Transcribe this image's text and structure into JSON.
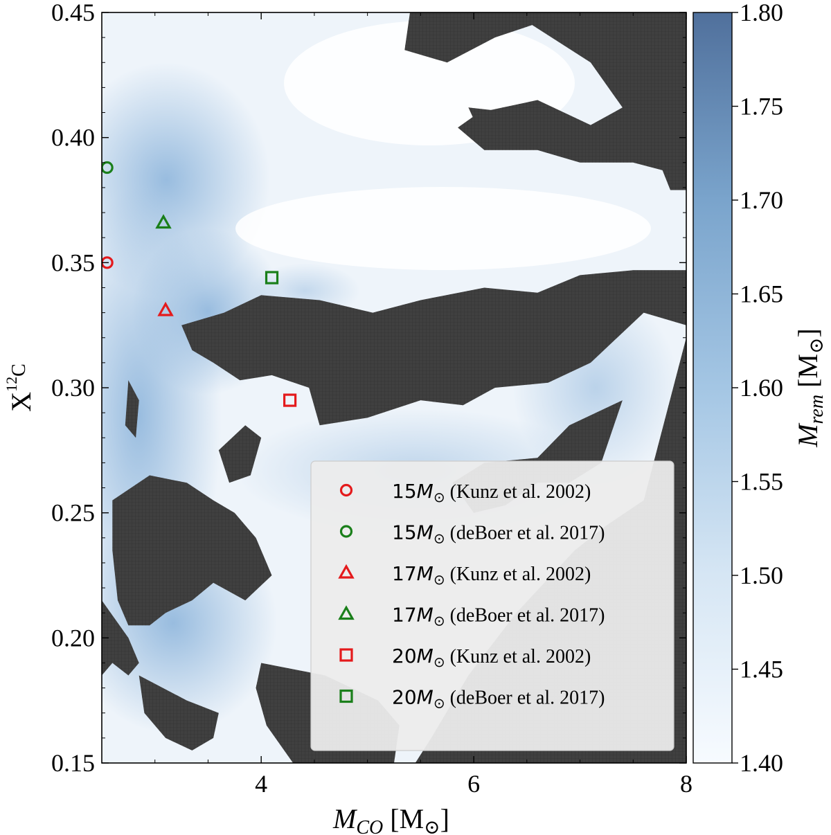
{
  "chart_data": {
    "type": "heatmap",
    "title": "",
    "xlabel": "M_CO [M⊙]",
    "xlabel_parts": {
      "sym": "M",
      "sub": "CO",
      "unit_open": " [M",
      "sun": "⊙",
      "unit_close": "]"
    },
    "ylabel": "X_12C",
    "ylabel_parts": {
      "sym": "X",
      "sup": "12",
      "sub": "C"
    },
    "xlim": [
      2.5,
      8
    ],
    "ylim": [
      0.15,
      0.45
    ],
    "xticks": [
      4,
      6,
      8
    ],
    "xtick_labels": [
      "4",
      "6",
      "8"
    ],
    "yticks": [
      0.15,
      0.2,
      0.25,
      0.3,
      0.35,
      0.4,
      0.45
    ],
    "ytick_labels": [
      "0.15",
      "0.20",
      "0.25",
      "0.30",
      "0.35",
      "0.40",
      "0.45"
    ],
    "colorbar": {
      "label": "M_rem [M⊙]",
      "label_parts": {
        "sym": "M",
        "sub": "rem",
        "unit_open": " [M",
        "sun": "⊙",
        "unit_close": "]"
      },
      "range": [
        1.4,
        1.8
      ],
      "ticks": [
        1.4,
        1.45,
        1.5,
        1.55,
        1.6,
        1.65,
        1.7,
        1.75,
        1.8
      ],
      "tick_labels": [
        "1.40",
        "1.45",
        "1.50",
        "1.55",
        "1.60",
        "1.65",
        "1.70",
        "1.75",
        "1.80"
      ],
      "color_low": "#f7fbff",
      "color_high": "#50709c"
    },
    "no_remnant_color": "#404040",
    "dark_regions": [
      {
        "name": "upper-right-band",
        "points": [
          [
            8,
            0.45
          ],
          [
            5.4,
            0.45
          ],
          [
            5.35,
            0.435
          ],
          [
            5.75,
            0.43
          ],
          [
            6.2,
            0.44
          ],
          [
            6.55,
            0.445
          ],
          [
            7.1,
            0.43
          ],
          [
            7.4,
            0.412
          ],
          [
            7.1,
            0.405
          ],
          [
            6.6,
            0.415
          ],
          [
            6.05,
            0.41
          ],
          [
            5.85,
            0.404
          ],
          [
            6.1,
            0.395
          ],
          [
            6.6,
            0.395
          ],
          [
            7.0,
            0.39
          ],
          [
            7.5,
            0.39
          ],
          [
            7.95,
            0.385
          ],
          [
            8,
            0.385
          ]
        ]
      },
      {
        "name": "upper-left-band",
        "points": [
          [
            5.95,
            0.412
          ],
          [
            6.8,
            0.408
          ],
          [
            6.7,
            0.397
          ],
          [
            6.1,
            0.398
          ]
        ]
      },
      {
        "name": "right-edge-band",
        "points": [
          [
            7.7,
            0.395
          ],
          [
            8,
            0.39
          ],
          [
            8,
            0.379
          ],
          [
            7.85,
            0.379
          ]
        ]
      },
      {
        "name": "middle-band",
        "points": [
          [
            3.25,
            0.325
          ],
          [
            3.65,
            0.33
          ],
          [
            4.0,
            0.337
          ],
          [
            4.55,
            0.335
          ],
          [
            5.05,
            0.33
          ],
          [
            5.5,
            0.335
          ],
          [
            6.1,
            0.34
          ],
          [
            6.6,
            0.338
          ],
          [
            7.0,
            0.345
          ],
          [
            7.5,
            0.347
          ],
          [
            8,
            0.347
          ],
          [
            8,
            0.325
          ],
          [
            7.6,
            0.33
          ],
          [
            7.1,
            0.31
          ],
          [
            6.7,
            0.302
          ],
          [
            6.2,
            0.3
          ],
          [
            5.9,
            0.293
          ],
          [
            5.5,
            0.295
          ],
          [
            5.0,
            0.288
          ],
          [
            4.55,
            0.285
          ],
          [
            4.45,
            0.3
          ],
          [
            4.1,
            0.305
          ],
          [
            3.8,
            0.303
          ],
          [
            3.55,
            0.31
          ],
          [
            3.35,
            0.315
          ]
        ]
      },
      {
        "name": "lower-right-wedge",
        "points": [
          [
            8,
            0.32
          ],
          [
            7.6,
            0.255
          ],
          [
            7.25,
            0.245
          ],
          [
            6.95,
            0.235
          ],
          [
            6.4,
            0.21
          ],
          [
            5.95,
            0.185
          ],
          [
            5.6,
            0.16
          ],
          [
            5.45,
            0.15
          ],
          [
            8,
            0.15
          ]
        ]
      },
      {
        "name": "lower-right-fringe",
        "points": [
          [
            6.9,
            0.285
          ],
          [
            7.4,
            0.295
          ],
          [
            7.2,
            0.27
          ],
          [
            6.9,
            0.262
          ],
          [
            6.6,
            0.262
          ],
          [
            6.3,
            0.253
          ],
          [
            6.0,
            0.25
          ],
          [
            5.8,
            0.262
          ],
          [
            6.1,
            0.27
          ],
          [
            6.6,
            0.272
          ]
        ]
      },
      {
        "name": "lower-left-mass",
        "points": [
          [
            2.6,
            0.255
          ],
          [
            2.95,
            0.265
          ],
          [
            3.3,
            0.262
          ],
          [
            3.55,
            0.255
          ],
          [
            3.75,
            0.25
          ],
          [
            3.95,
            0.24
          ],
          [
            4.1,
            0.225
          ],
          [
            3.85,
            0.215
          ],
          [
            3.55,
            0.222
          ],
          [
            3.35,
            0.215
          ],
          [
            3.1,
            0.21
          ],
          [
            2.95,
            0.205
          ],
          [
            2.75,
            0.205
          ],
          [
            2.65,
            0.215
          ],
          [
            2.6,
            0.235
          ]
        ]
      },
      {
        "name": "lower-left-blob",
        "points": [
          [
            2.5,
            0.215
          ],
          [
            2.75,
            0.2
          ],
          [
            2.85,
            0.19
          ],
          [
            2.75,
            0.185
          ],
          [
            2.6,
            0.19
          ],
          [
            2.5,
            0.185
          ]
        ]
      },
      {
        "name": "bottom-left-band",
        "points": [
          [
            2.85,
            0.185
          ],
          [
            3.3,
            0.175
          ],
          [
            3.6,
            0.17
          ],
          [
            3.55,
            0.16
          ],
          [
            3.35,
            0.155
          ],
          [
            3.1,
            0.16
          ],
          [
            2.9,
            0.17
          ]
        ]
      },
      {
        "name": "bottom-center-mass",
        "points": [
          [
            4.0,
            0.19
          ],
          [
            4.6,
            0.185
          ],
          [
            5.1,
            0.175
          ],
          [
            5.3,
            0.165
          ],
          [
            5.25,
            0.15
          ],
          [
            4.3,
            0.15
          ],
          [
            4.05,
            0.165
          ],
          [
            3.95,
            0.18
          ]
        ]
      },
      {
        "name": "left-small-blob",
        "points": [
          [
            2.75,
            0.303
          ],
          [
            2.85,
            0.295
          ],
          [
            2.82,
            0.28
          ],
          [
            2.72,
            0.285
          ]
        ]
      },
      {
        "name": "center-small-blob",
        "points": [
          [
            3.6,
            0.275
          ],
          [
            3.85,
            0.285
          ],
          [
            4.0,
            0.28
          ],
          [
            3.9,
            0.265
          ],
          [
            3.7,
            0.262
          ]
        ]
      }
    ],
    "series": [
      {
        "name": "15M⊙ (Kunz et al. 2002)",
        "mass": "15",
        "ref": " (Kunz et al. 2002)",
        "marker": "circle",
        "color": "#e41a1c",
        "x": 2.55,
        "y": 0.35
      },
      {
        "name": "15M⊙ (deBoer et al. 2017)",
        "mass": "15",
        "ref": " (deBoer et al. 2017)",
        "marker": "circle",
        "color": "#1a7f1a",
        "x": 2.55,
        "y": 0.388
      },
      {
        "name": "17M⊙ (Kunz et al. 2002)",
        "mass": "17",
        "ref": " (Kunz et al. 2002)",
        "marker": "triangle",
        "color": "#e41a1c",
        "x": 3.1,
        "y": 0.331
      },
      {
        "name": "17M⊙ (deBoer et al. 2017)",
        "mass": "17",
        "ref": " (deBoer et al. 2017)",
        "marker": "triangle",
        "color": "#1a7f1a",
        "x": 3.08,
        "y": 0.366
      },
      {
        "name": "20M⊙ (Kunz et al. 2002)",
        "mass": "20",
        "ref": " (Kunz et al. 2002)",
        "marker": "square",
        "color": "#e41a1c",
        "x": 4.27,
        "y": 0.295
      },
      {
        "name": "20M⊙ (deBoer et al. 2017)",
        "mass": "20",
        "ref": " (deBoer et al. 2017)",
        "marker": "square",
        "color": "#1a7f1a",
        "x": 4.1,
        "y": 0.344
      }
    ],
    "legend_placement": "lower-right",
    "legend_mass_unit": "M",
    "legend_mass_sun": "⊙"
  }
}
